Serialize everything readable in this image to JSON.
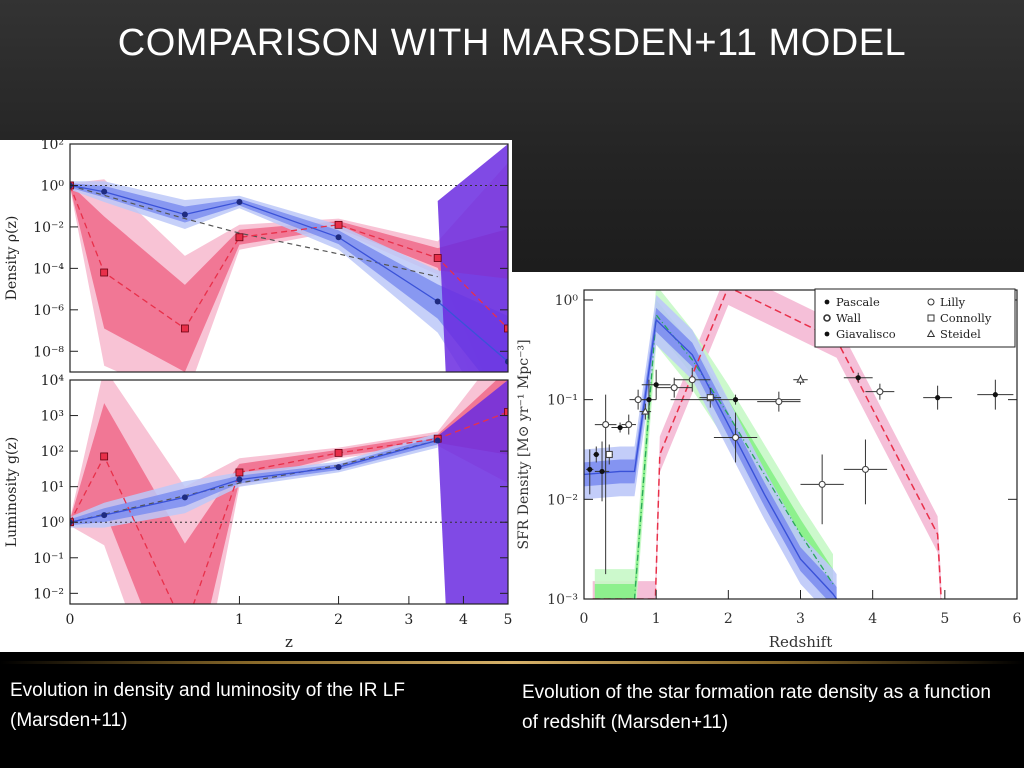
{
  "slide": {
    "title": "COMPARISON WITH MARSDEN+11 MODEL",
    "caption_left": "Evolution in density and luminosity of the IR LF (Marsden+11)",
    "caption_right": "Evolution of the star formation rate density as a function of redshift (Marsden+11)"
  },
  "colors": {
    "red": "#e8304a",
    "red_band_dark": "#f06a8a",
    "red_band_light": "#f7b8ce",
    "blue": "#3a52d8",
    "blue_band_dark": "#7d8ef0",
    "blue_band_light": "#bcc8f8",
    "purple_overlap": "#6a2ae0",
    "green_band_dark": "#86ef86",
    "green_band_light": "#c6f8c6",
    "green_line": "#2aa85a",
    "pink_band": "#f4b8d4"
  },
  "chart_data": [
    {
      "type": "line",
      "panel": "top",
      "ylabel": "Density ρ(z)",
      "yscale": "log",
      "ylim_exp": [
        -9,
        2
      ],
      "ytick_exps": [
        2,
        0,
        -2,
        -4,
        -6,
        -8
      ],
      "ytick_labels": [
        "10²",
        "10⁰",
        "10⁻²",
        "10⁻⁴",
        "10⁻⁶",
        "10⁻⁸"
      ],
      "xlim": [
        0,
        5
      ],
      "xscale": "log(1+z)",
      "reference_line_exp": 0,
      "series": [
        {
          "style": "blue-solid-circles",
          "x": [
            0,
            0.15,
            0.6,
            1.0,
            2.0,
            3.5,
            5.0
          ],
          "y_exp": [
            0,
            -0.3,
            -1.4,
            -0.8,
            -2.5,
            -5.6,
            -8.5
          ]
        },
        {
          "style": "red-dashed-squares",
          "x": [
            0,
            0.15,
            0.6,
            1.0,
            2.0,
            3.5,
            5.0
          ],
          "y_exp": [
            0,
            -4.2,
            -6.9,
            -2.5,
            -1.9,
            -3.5,
            -6.9
          ]
        },
        {
          "style": "black-dashed",
          "x": [
            0,
            0.6,
            1.0,
            2.0,
            3.5
          ],
          "y_exp": [
            0,
            -1.6,
            -2.3,
            -3.3,
            -4.4
          ]
        }
      ]
    },
    {
      "type": "line",
      "panel": "bottom",
      "xlabel": "z",
      "ylabel": "Luminosity g(z)",
      "yscale": "log",
      "ylim_exp": [
        -2.3,
        4
      ],
      "ytick_exps": [
        4,
        3,
        2,
        1,
        0,
        -1,
        -2
      ],
      "ytick_labels": [
        "10⁴",
        "10³",
        "10²",
        "10¹",
        "10⁰",
        "10⁻¹",
        "10⁻²"
      ],
      "xlim": [
        0,
        5
      ],
      "xscale": "log(1+z)",
      "xticks": [
        0,
        1,
        2,
        3,
        4,
        5
      ],
      "xtick_labels": [
        "0",
        "1",
        "2",
        "3",
        "4",
        "5"
      ],
      "reference_line_exp": 0,
      "series": [
        {
          "style": "blue-solid-circles",
          "x": [
            0,
            0.15,
            0.6,
            1.0,
            2.0,
            3.5
          ],
          "y_exp": [
            0,
            0.2,
            0.7,
            1.2,
            1.55,
            2.3
          ]
        },
        {
          "style": "red-dashed-squares",
          "x": [
            0,
            0.15,
            0.6,
            1.0,
            2.0,
            3.5,
            5.0
          ],
          "y_exp": [
            0,
            1.85,
            -3,
            1.4,
            1.95,
            2.35,
            3.1
          ]
        },
        {
          "style": "black-dashed",
          "x": [
            0,
            1.0,
            2.0,
            3.5
          ],
          "y_exp": [
            0,
            1.1,
            1.6,
            2.3
          ]
        }
      ]
    },
    {
      "type": "scatter",
      "panel": "sfr",
      "xlabel": "Redshift",
      "ylabel": "SFR Density [M⊙ yr⁻¹ Mpc⁻³]",
      "yscale": "log",
      "xlim": [
        0,
        6
      ],
      "xticks": [
        0,
        1,
        2,
        3,
        4,
        5,
        6
      ],
      "xtick_labels": [
        "0",
        "1",
        "2",
        "3",
        "4",
        "5",
        "6"
      ],
      "ylim_exp": [
        -3,
        0.1
      ],
      "ytick_exps": [
        0,
        -1,
        -2,
        -3
      ],
      "ytick_labels": [
        "10⁰",
        "10⁻¹",
        "10⁻²",
        "10⁻³"
      ],
      "legend": {
        "placement": "top-right",
        "entries": [
          {
            "symbol": "filled-circle",
            "label": "Pascale"
          },
          {
            "symbol": "open-circle",
            "label": "Lilly"
          },
          {
            "symbol": "open-circle-bold",
            "label": "Wall"
          },
          {
            "symbol": "open-square",
            "label": "Connolly"
          },
          {
            "symbol": "filled-circle",
            "label": "Giavalisco"
          },
          {
            "symbol": "open-triangle",
            "label": "Steidel"
          }
        ]
      },
      "points": [
        {
          "x": 0.08,
          "y_exp": -1.7,
          "err_lo": 0.25,
          "err_hi": 0.2,
          "xerr": 0.05,
          "marker": "filled"
        },
        {
          "x": 0.17,
          "y_exp": -1.55,
          "err_lo": 0.08,
          "err_hi": 0.08,
          "xerr": 0.04,
          "marker": "filled"
        },
        {
          "x": 0.25,
          "y_exp": -1.72,
          "err_lo": 0.3,
          "err_hi": 0.3,
          "xerr": 0.1,
          "marker": "filled"
        },
        {
          "x": 0.3,
          "y_exp": -1.25,
          "err_lo": 1.5,
          "err_hi": 0.3,
          "xerr": 0.15,
          "marker": "open"
        },
        {
          "x": 0.35,
          "y_exp": -1.55,
          "err_lo": 0.1,
          "err_hi": 0.1,
          "xerr": 0.05,
          "marker": "square"
        },
        {
          "x": 0.5,
          "y_exp": -1.28,
          "err_lo": 0.05,
          "err_hi": 0.05,
          "xerr": 0.12,
          "marker": "filled"
        },
        {
          "x": 0.62,
          "y_exp": -1.25,
          "err_lo": 0.1,
          "err_hi": 0.1,
          "xerr": 0.1,
          "marker": "open"
        },
        {
          "x": 0.75,
          "y_exp": -1.0,
          "err_lo": 0.1,
          "err_hi": 0.1,
          "xerr": 0.12,
          "marker": "open"
        },
        {
          "x": 0.85,
          "y_exp": -1.12,
          "err_lo": 0.08,
          "err_hi": 0.08,
          "xerr": 0.08,
          "marker": "triangle"
        },
        {
          "x": 0.9,
          "y_exp": -1.0,
          "err_lo": 0.2,
          "err_hi": 0.2,
          "xerr": 0.1,
          "marker": "filled"
        },
        {
          "x": 1.0,
          "y_exp": -0.85,
          "err_lo": 0.15,
          "err_hi": 0.15,
          "xerr": 0.2,
          "marker": "filled"
        },
        {
          "x": 1.25,
          "y_exp": -0.88,
          "err_lo": 0.1,
          "err_hi": 0.1,
          "xerr": 0.25,
          "marker": "open"
        },
        {
          "x": 1.5,
          "y_exp": -0.8,
          "err_lo": 0.12,
          "err_hi": 0.12,
          "xerr": 0.25,
          "marker": "open"
        },
        {
          "x": 1.75,
          "y_exp": -0.98,
          "err_lo": 0.1,
          "err_hi": 0.1,
          "xerr": 0.15,
          "marker": "square"
        },
        {
          "x": 2.1,
          "y_exp": -1.0,
          "err_lo": 0.05,
          "err_hi": 0.05,
          "xerr": 0.9,
          "marker": "filled"
        },
        {
          "x": 2.1,
          "y_exp": -1.38,
          "err_lo": 0.25,
          "err_hi": 0.25,
          "xerr": 0.3,
          "marker": "open"
        },
        {
          "x": 2.7,
          "y_exp": -1.02,
          "err_lo": 0.1,
          "err_hi": 0.1,
          "xerr": 0.3,
          "marker": "open"
        },
        {
          "x": 3.0,
          "y_exp": -0.8,
          "err_lo": 0.05,
          "err_hi": 0.05,
          "xerr": 0.1,
          "marker": "triangle"
        },
        {
          "x": 3.3,
          "y_exp": -1.85,
          "err_lo": 0.4,
          "err_hi": 0.3,
          "xerr": 0.3,
          "marker": "open"
        },
        {
          "x": 3.8,
          "y_exp": -0.78,
          "err_lo": 0.05,
          "err_hi": 0.05,
          "xerr": 0.2,
          "marker": "filled"
        },
        {
          "x": 3.9,
          "y_exp": -1.7,
          "err_lo": 0.35,
          "err_hi": 0.3,
          "xerr": 0.3,
          "marker": "open"
        },
        {
          "x": 4.1,
          "y_exp": -0.92,
          "err_lo": 0.08,
          "err_hi": 0.08,
          "xerr": 0.2,
          "marker": "open"
        },
        {
          "x": 4.9,
          "y_exp": -0.98,
          "err_lo": 0.12,
          "err_hi": 0.12,
          "xerr": 0.2,
          "marker": "filled"
        },
        {
          "x": 5.7,
          "y_exp": -0.95,
          "err_lo": 0.15,
          "err_hi": 0.15,
          "xerr": 0.25,
          "marker": "filled"
        }
      ],
      "series": [
        {
          "style": "blue-solid",
          "x": [
            0.0,
            0.5,
            0.7,
            1.0,
            1.5,
            2.0,
            2.5,
            3.0,
            3.45,
            3.5
          ],
          "y_exp": [
            -1.75,
            -1.72,
            -1.72,
            -0.2,
            -0.55,
            -1.25,
            -1.95,
            -2.6,
            -2.95,
            -3.0
          ]
        },
        {
          "style": "green-dashdot",
          "x": [
            0.15,
            0.3,
            0.7,
            1.0,
            1.5,
            2.0,
            2.5,
            3.0,
            3.45
          ],
          "y_exp": [
            -3.0,
            -3.0,
            -3.0,
            -0.15,
            -0.6,
            -1.15,
            -1.75,
            -2.35,
            -2.85
          ]
        },
        {
          "style": "red-dashed",
          "x": [
            0.12,
            0.18,
            0.99,
            1.05,
            2.0,
            3.5,
            4.9,
            4.95
          ],
          "y_exp": [
            -3.0,
            -3.0,
            -3.0,
            -1.55,
            0.13,
            -0.4,
            -2.35,
            -3.0
          ]
        }
      ]
    }
  ]
}
